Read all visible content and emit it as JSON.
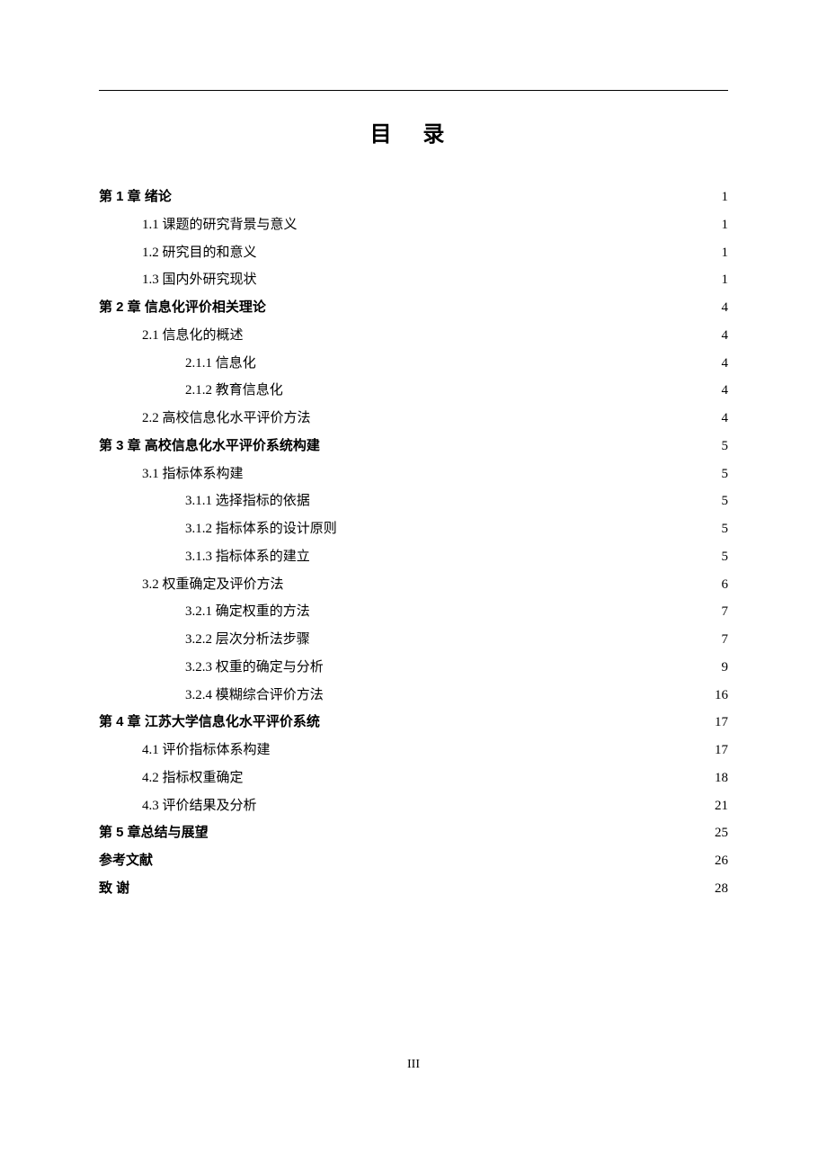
{
  "title": "目 录",
  "pageNumber": "III",
  "entries": [
    {
      "level": 0,
      "bold": true,
      "label": "第 1 章  绪论",
      "page": "1",
      "leader": "wide"
    },
    {
      "level": 1,
      "bold": false,
      "label": "1.1 课题的研究背景与意义",
      "page": "1",
      "leader": "dot"
    },
    {
      "level": 1,
      "bold": false,
      "label": "1.2 研究目的和意义",
      "page": "1",
      "leader": "dot"
    },
    {
      "level": 1,
      "bold": false,
      "label": "1.3 国内外研究现状",
      "page": "1",
      "leader": "dot"
    },
    {
      "level": 0,
      "bold": true,
      "label": "第 2 章  信息化评价相关理论",
      "page": "4",
      "leader": "wide"
    },
    {
      "level": 1,
      "bold": false,
      "label": "2.1 信息化的概述",
      "page": "4",
      "leader": "dot"
    },
    {
      "level": 2,
      "bold": false,
      "label": "2.1.1 信息化",
      "page": "4",
      "leader": "dot"
    },
    {
      "level": 2,
      "bold": false,
      "label": "2.1.2 教育信息化",
      "page": "4",
      "leader": "dot"
    },
    {
      "level": 1,
      "bold": false,
      "label": "2.2 高校信息化水平评价方法",
      "page": "4",
      "leader": "dot"
    },
    {
      "level": 0,
      "bold": true,
      "label": "第 3 章  高校信息化水平评价系统构建",
      "page": "5",
      "leader": "wide"
    },
    {
      "level": 1,
      "bold": false,
      "label": "3.1 指标体系构建",
      "page": "5",
      "leader": "dot"
    },
    {
      "level": 2,
      "bold": false,
      "label": "3.1.1 选择指标的依据",
      "page": "5",
      "leader": "dot"
    },
    {
      "level": 2,
      "bold": false,
      "label": "3.1.2 指标体系的设计原则",
      "page": "5",
      "leader": "dot"
    },
    {
      "level": 2,
      "bold": false,
      "label": "3.1.3 指标体系的建立",
      "page": "5",
      "leader": "dot"
    },
    {
      "level": 1,
      "bold": false,
      "label": "3.2 权重确定及评价方法",
      "page": "6",
      "leader": "dot"
    },
    {
      "level": 2,
      "bold": false,
      "label": "3.2.1 确定权重的方法",
      "page": "7",
      "leader": "dot"
    },
    {
      "level": 2,
      "bold": false,
      "label": "3.2.2  层次分析法步骤",
      "page": "7",
      "leader": "dot"
    },
    {
      "level": 2,
      "bold": false,
      "label": "3.2.3 权重的确定与分析",
      "page": "9",
      "leader": "dot"
    },
    {
      "level": 2,
      "bold": false,
      "label": "3.2.4 模糊综合评价方法",
      "page": "16",
      "leader": "dot"
    },
    {
      "level": 0,
      "bold": true,
      "label": "第 4 章  江苏大学信息化水平评价系统",
      "page": "17",
      "leader": "wide"
    },
    {
      "level": 1,
      "bold": false,
      "label": "4.1  评价指标体系构建",
      "page": "17",
      "leader": "dot"
    },
    {
      "level": 1,
      "bold": false,
      "label": "4.2  指标权重确定",
      "page": "18",
      "leader": "dot"
    },
    {
      "level": 1,
      "bold": false,
      "label": "4.3 评价结果及分析",
      "page": "21",
      "leader": "dot"
    },
    {
      "level": 0,
      "bold": true,
      "label": "第 5 章总结与展望",
      "page": "25",
      "leader": "wide"
    },
    {
      "level": 0,
      "bold": true,
      "label": "参考文献",
      "page": "26",
      "leader": "wide"
    },
    {
      "level": 0,
      "bold": true,
      "label": "致    谢",
      "page": "28",
      "leader": "wide"
    }
  ]
}
